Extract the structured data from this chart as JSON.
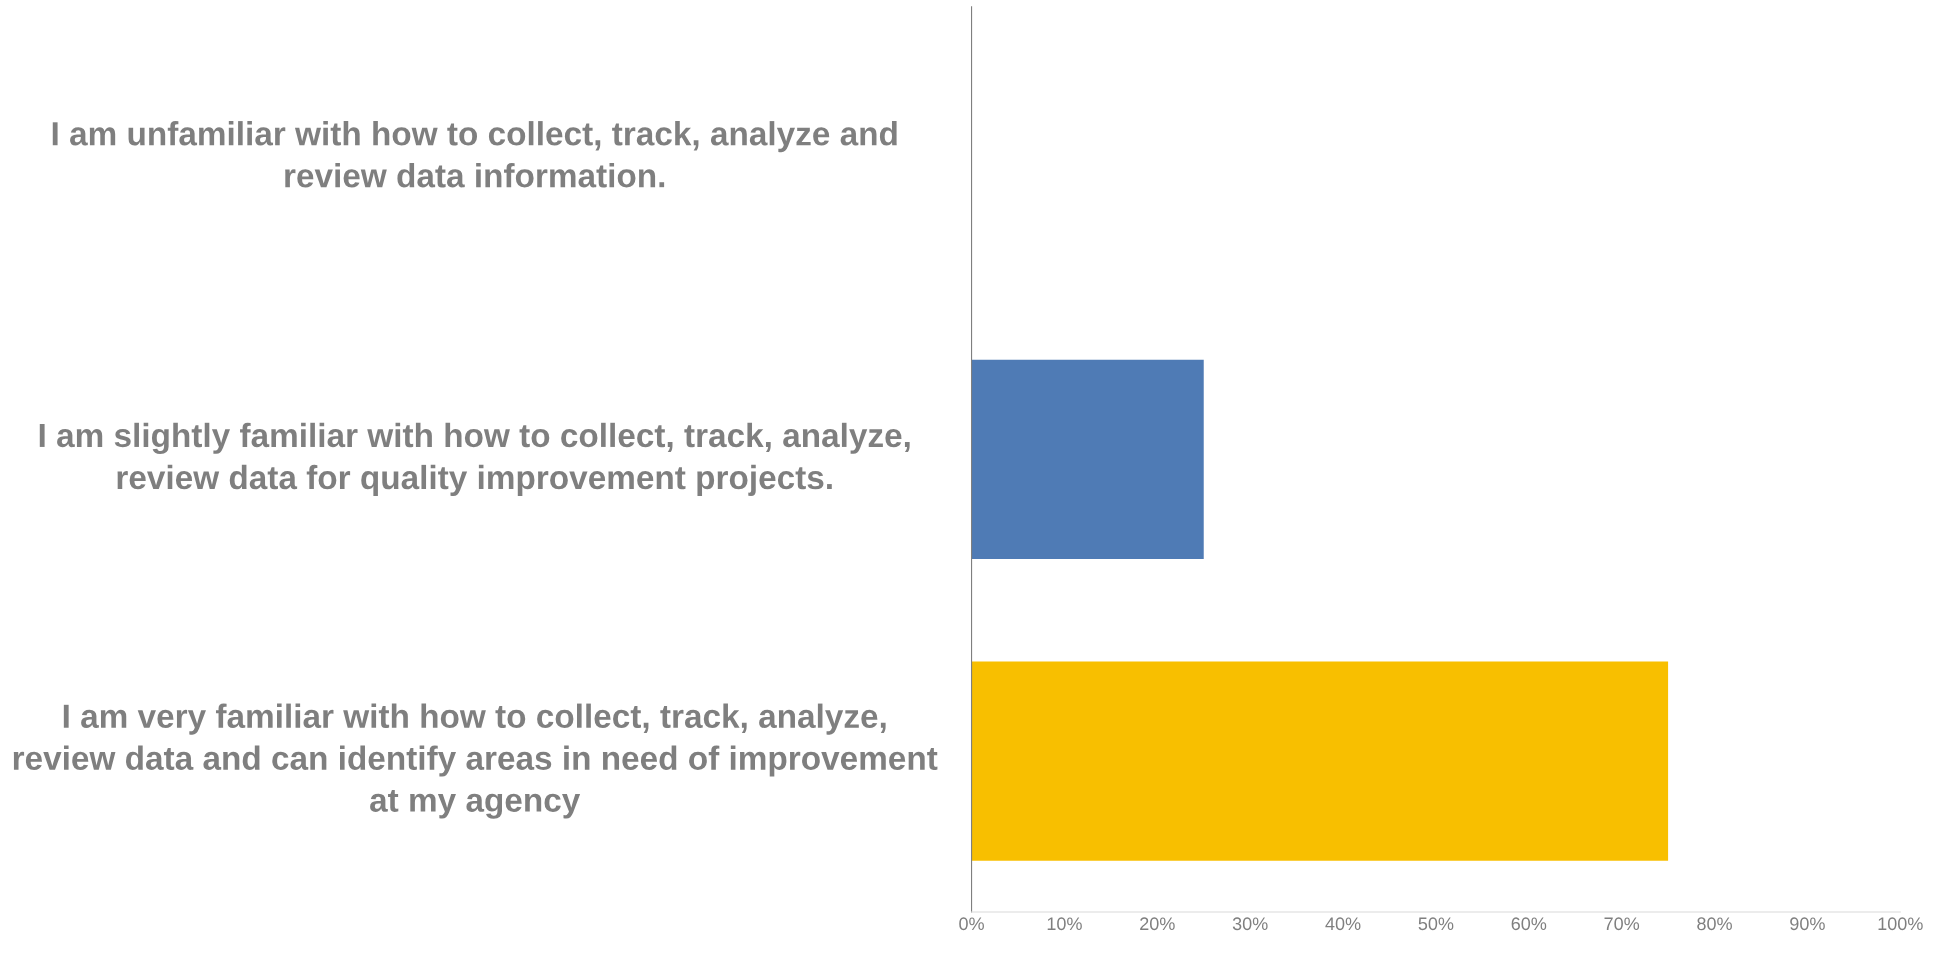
{
  "chart_data": {
    "type": "bar",
    "orientation": "horizontal",
    "categories": [
      "I am unfamiliar with how to collect, track, analyze and\nreview data information.",
      "I am slightly familiar with how to collect, track, analyze,\nreview data for quality improvement projects.",
      "I am very familiar with how to collect, track, analyze,\nreview data and can identify areas in need of improvement\nat my agency"
    ],
    "values": [
      0,
      25,
      75
    ],
    "colors": [
      "#4f7bb5",
      "#4f7bb5",
      "#f8bf00"
    ],
    "xlim": [
      0,
      100
    ],
    "xticks": [
      {
        "value": 0,
        "label": "0%"
      },
      {
        "value": 10,
        "label": "10%"
      },
      {
        "value": 20,
        "label": "20%"
      },
      {
        "value": 30,
        "label": "30%"
      },
      {
        "value": 40,
        "label": "40%"
      },
      {
        "value": 50,
        "label": "50%"
      },
      {
        "value": 60,
        "label": "60%"
      },
      {
        "value": 70,
        "label": "70%"
      },
      {
        "value": 80,
        "label": "80%"
      },
      {
        "value": 90,
        "label": "90%"
      },
      {
        "value": 100,
        "label": "100%"
      }
    ],
    "grid": false,
    "legend": false
  }
}
